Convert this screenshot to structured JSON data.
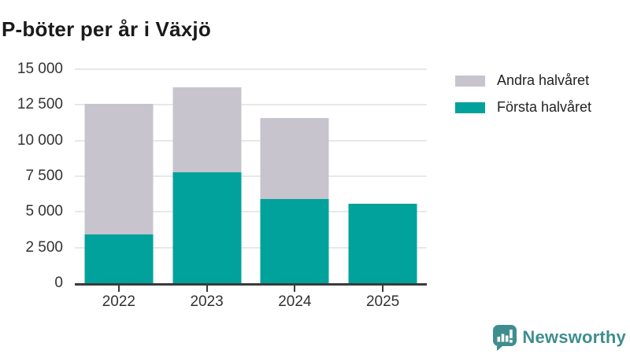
{
  "title": "P-böter per år i Växjö",
  "colors": {
    "first_half": "#00A29B",
    "second_half": "#C7C4CE",
    "gridline": "#E8E8E8",
    "axis": "#3B3B3B",
    "label_text": "#333333",
    "logo": "#3F8E8F"
  },
  "legend": [
    {
      "label": "Andra halvåret",
      "color": "#C7C4CE"
    },
    {
      "label": "Första halvåret",
      "color": "#00A29B"
    }
  ],
  "y_axis": {
    "max": 15000,
    "ticks": [
      "15 000",
      "12 500",
      "10 000",
      "7 500",
      "5 000",
      "2 500",
      "0"
    ]
  },
  "chart_data": {
    "type": "bar",
    "stacked": true,
    "title": "P-böter per år i Växjö",
    "categories": [
      "2022",
      "2023",
      "2024",
      "2025"
    ],
    "series": [
      {
        "name": "Första halvåret",
        "color": "#00A29B",
        "values": [
          3400,
          7800,
          5900,
          5550
        ]
      },
      {
        "name": "Andra halvåret",
        "color": "#C7C4CE",
        "values": [
          9150,
          5950,
          5700,
          0
        ]
      }
    ],
    "totals": [
      12550,
      13750,
      11600,
      5550
    ],
    "xlabel": "",
    "ylabel": "",
    "ylim": [
      0,
      15000
    ],
    "grid": true,
    "legend_position": "right"
  },
  "logo": {
    "text": "Newsworthy"
  }
}
